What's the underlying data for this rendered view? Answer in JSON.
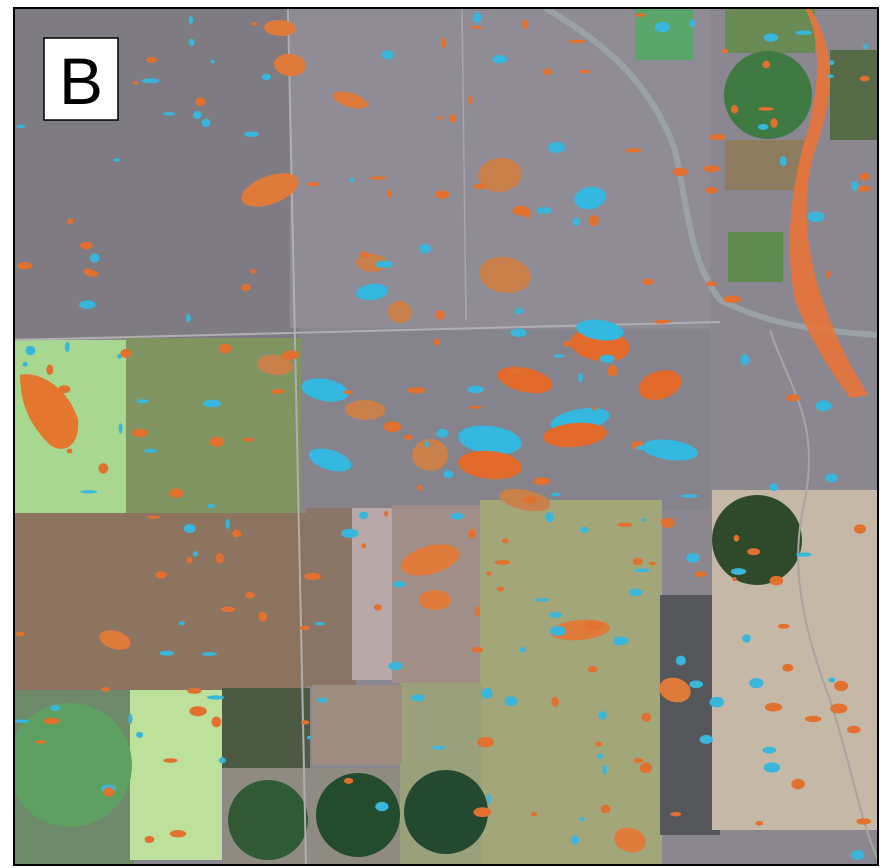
{
  "panel_label": "B"
}
